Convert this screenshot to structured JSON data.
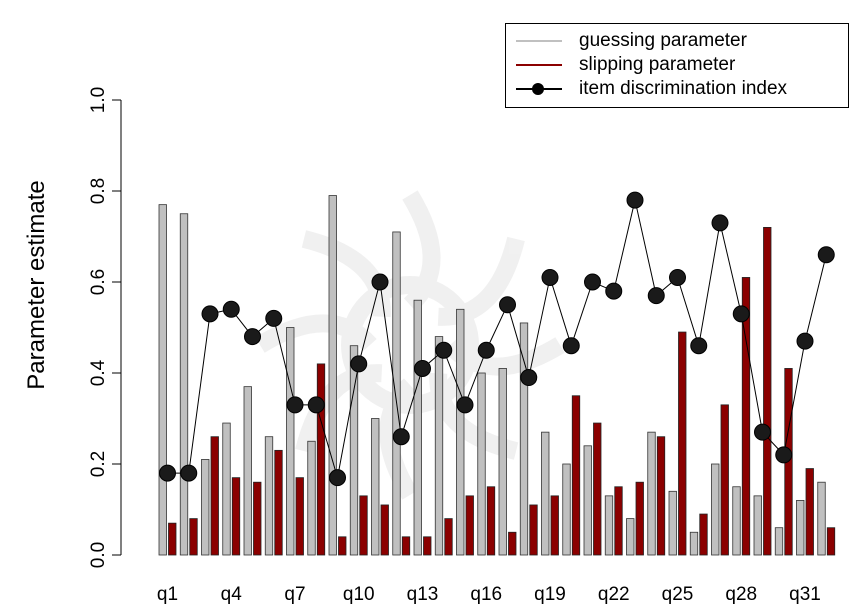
{
  "chart_data": {
    "type": "bar",
    "ylabel": "Parameter estimate",
    "xlabel": "",
    "ylim": [
      0,
      1
    ],
    "yticks": [
      "0.0",
      "0.2",
      "0.4",
      "0.6",
      "0.8",
      "1.0"
    ],
    "categories": [
      "q1",
      "q2",
      "q3",
      "q4",
      "q5",
      "q6",
      "q7",
      "q8",
      "q9",
      "q10",
      "q11",
      "q12",
      "q13",
      "q14",
      "q15",
      "q16",
      "q17",
      "q18",
      "q19",
      "q20",
      "q21",
      "q22",
      "q23",
      "q24",
      "q25",
      "q26",
      "q27",
      "q28",
      "q29",
      "q30",
      "q31",
      "q32"
    ],
    "xtick_labels_shown": [
      "q1",
      "q4",
      "q7",
      "q10",
      "q13",
      "q16",
      "q19",
      "q22",
      "q25",
      "q28",
      "q31"
    ],
    "series": [
      {
        "name": "guessing parameter",
        "kind": "bar",
        "color": "#c0c0c0",
        "values": [
          0.77,
          0.75,
          0.21,
          0.29,
          0.37,
          0.26,
          0.5,
          0.25,
          0.79,
          0.46,
          0.3,
          0.71,
          0.56,
          0.48,
          0.54,
          0.4,
          0.41,
          0.51,
          0.27,
          0.2,
          0.24,
          0.13,
          0.08,
          0.27,
          0.14,
          0.05,
          0.2,
          0.15,
          0.13,
          0.06,
          0.12,
          0.16
        ]
      },
      {
        "name": "slipping parameter",
        "kind": "bar",
        "color": "#8b0000",
        "values": [
          0.07,
          0.08,
          0.26,
          0.17,
          0.16,
          0.23,
          0.17,
          0.42,
          0.04,
          0.13,
          0.11,
          0.04,
          0.04,
          0.08,
          0.13,
          0.15,
          0.05,
          0.11,
          0.13,
          0.35,
          0.29,
          0.15,
          0.16,
          0.26,
          0.49,
          0.09,
          0.33,
          0.61,
          0.72,
          0.41,
          0.19,
          0.06
        ]
      },
      {
        "name": "item discrimination index",
        "kind": "line",
        "color": "#000000",
        "values": [
          0.18,
          0.18,
          0.53,
          0.54,
          0.48,
          0.52,
          0.33,
          0.33,
          0.17,
          0.42,
          0.6,
          0.26,
          0.41,
          0.45,
          0.33,
          0.45,
          0.55,
          0.39,
          0.61,
          0.46,
          0.6,
          0.58,
          0.78,
          0.57,
          0.61,
          0.46,
          0.73,
          0.53,
          0.27,
          0.22,
          0.47,
          0.66
        ]
      }
    ],
    "legend_position": "top-right",
    "grid": false
  }
}
